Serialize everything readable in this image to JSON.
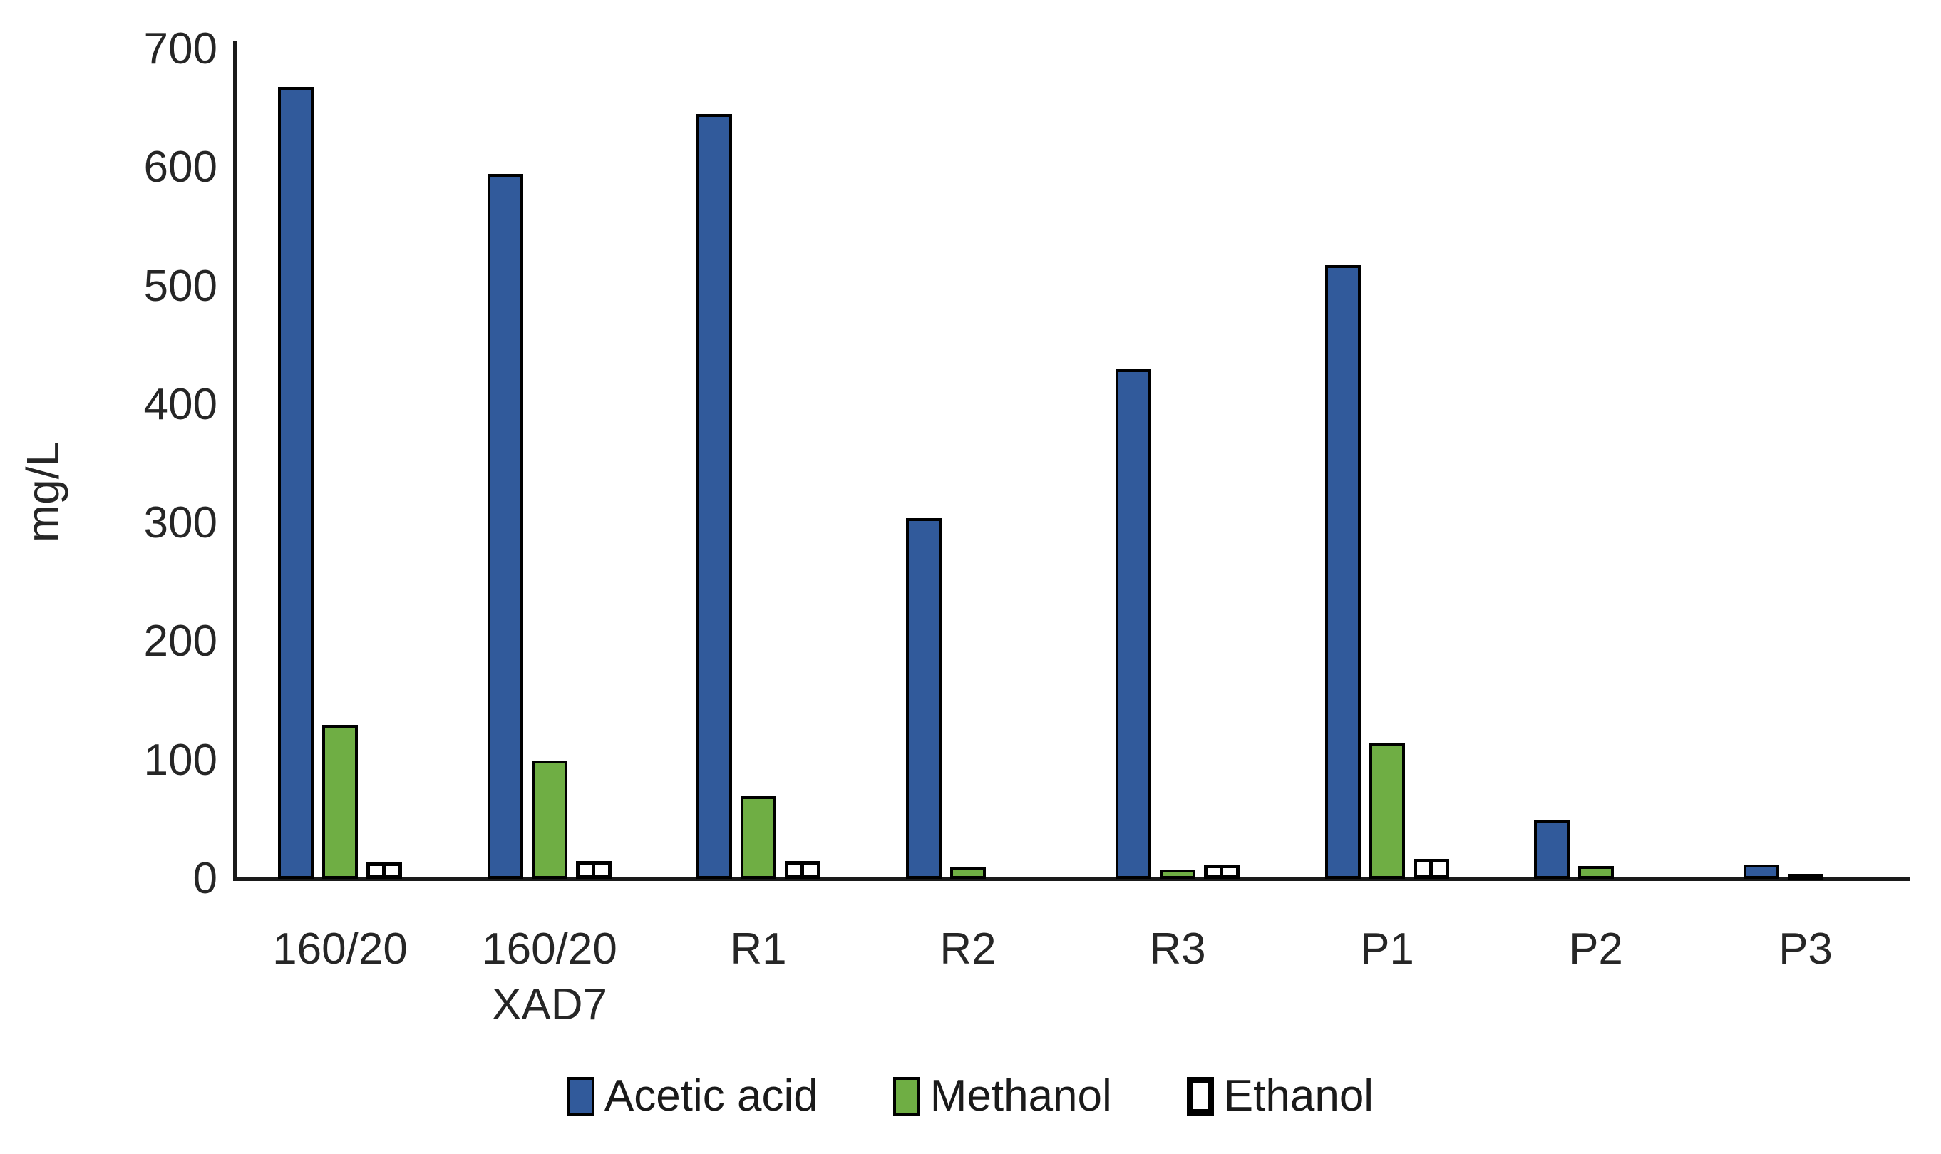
{
  "page": {
    "background": "#FFFFFF"
  },
  "chart_data": {
    "type": "bar",
    "title": "",
    "xlabel": "",
    "ylabel": "mg/L",
    "ylim": [
      0,
      700
    ],
    "ytick_step": 100,
    "yticks": [
      0,
      100,
      200,
      300,
      400,
      500,
      600,
      700
    ],
    "grid": false,
    "legend_position": "bottom",
    "axis_color": "#1A1A1A",
    "text_color": "#262626",
    "categories": [
      {
        "lines": [
          "160/20"
        ]
      },
      {
        "lines": [
          "160/20",
          "XAD7"
        ]
      },
      {
        "lines": [
          "R1"
        ]
      },
      {
        "lines": [
          "R2"
        ]
      },
      {
        "lines": [
          "R3"
        ]
      },
      {
        "lines": [
          "P1"
        ]
      },
      {
        "lines": [
          "P2"
        ]
      },
      {
        "lines": [
          "P3"
        ]
      }
    ],
    "series": [
      {
        "name": "Acetic acid",
        "fill": "#315A9B",
        "outline": "#000000",
        "pattern": "solid",
        "values": [
          668,
          595,
          645,
          304,
          430,
          518,
          50,
          12
        ]
      },
      {
        "name": "Methanol",
        "fill": "#6FAE44",
        "outline": "#000000",
        "pattern": "solid",
        "values": [
          130,
          100,
          70,
          10,
          8,
          114,
          11,
          4
        ]
      },
      {
        "name": "Ethanol",
        "fill": "#FFFFFF",
        "outline": "#000000",
        "pattern": "pane",
        "values": [
          14,
          15,
          15,
          0,
          12,
          17,
          0,
          0
        ]
      }
    ]
  }
}
